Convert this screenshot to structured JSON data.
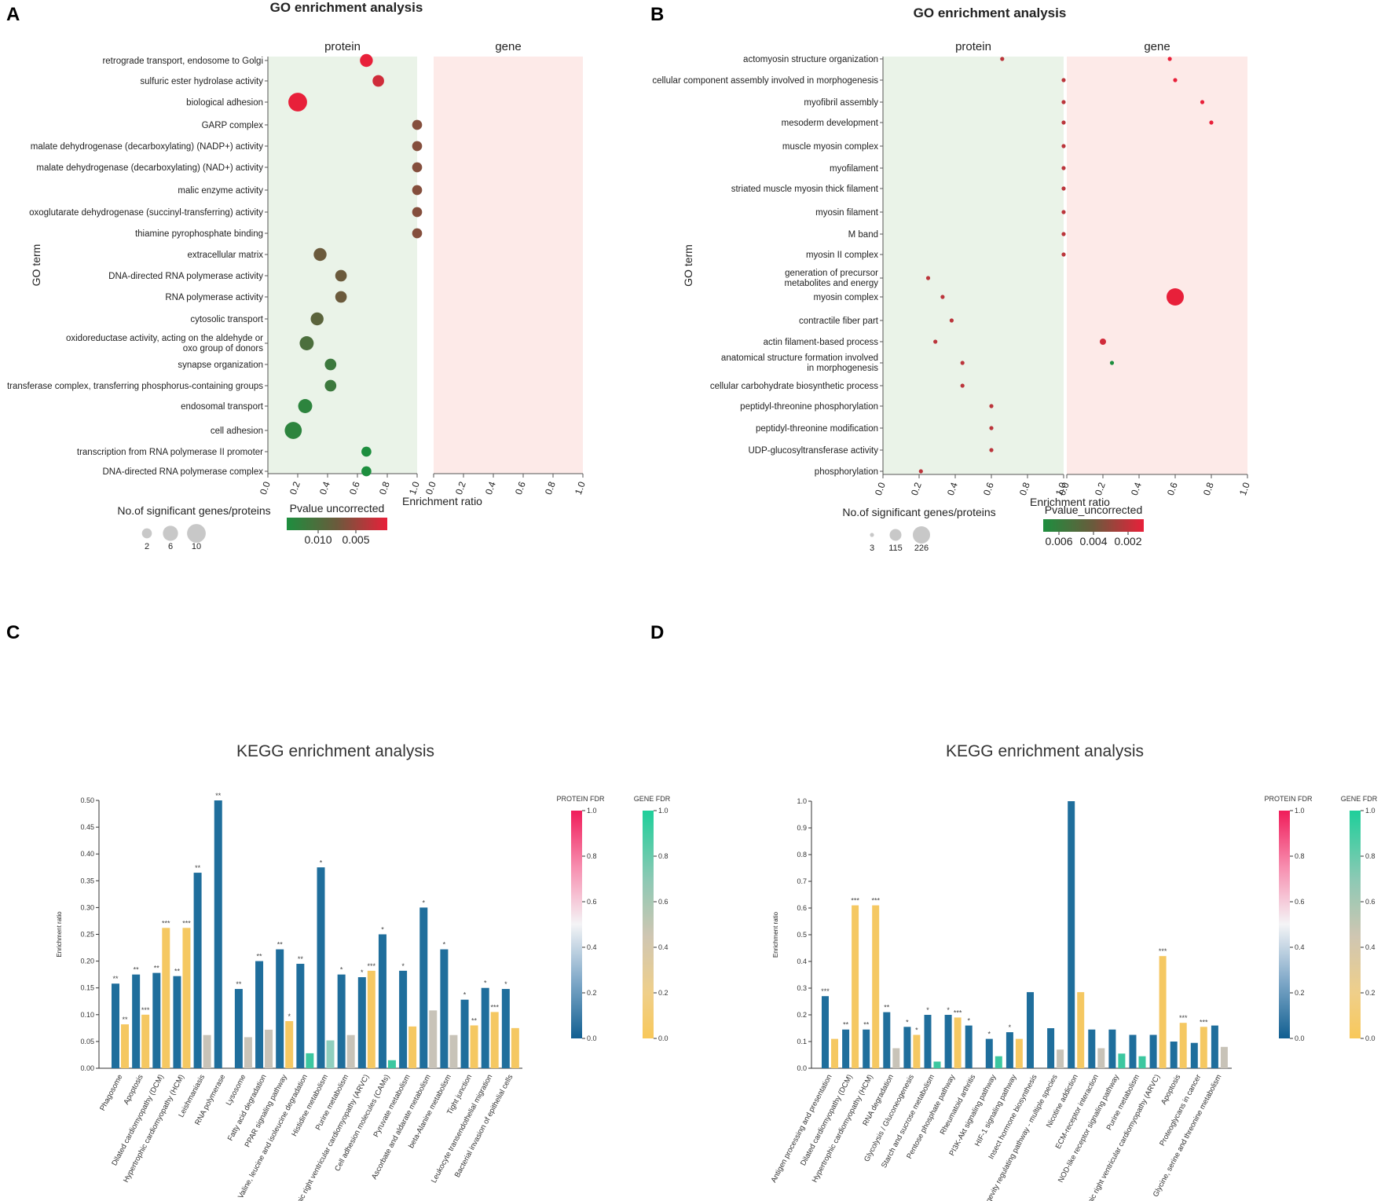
{
  "colors": {
    "protein_bg": "#eaf3e8",
    "gene_bg": "#fdeae8",
    "protein_bar": "#1f6e9c",
    "gene_bar": "#f5c862",
    "gene_bar_teal": "#3cc7a0",
    "gene_bar_gray": "#c8c3b8",
    "pv_high": "#1d8e3e",
    "pv_mid": "#6b5a3c",
    "pv_low": "#e8203a"
  },
  "chart_data": [
    {
      "panel": "A",
      "type": "scatter",
      "title": "GO enrichment analysis",
      "facets": [
        "protein",
        "gene"
      ],
      "ylabel": "GO term",
      "xlabel": "Enrichment ratio",
      "xlim": [
        0,
        1
      ],
      "xticks": [
        "0.0",
        "0.2",
        "0.4",
        "0.6",
        "0.8",
        "1.0"
      ],
      "size_legend": {
        "title": "No.of significant genes/proteins",
        "labels": [
          "2",
          "6",
          "10"
        ],
        "values": [
          2,
          6,
          10
        ]
      },
      "color_legend": {
        "title": "Pvalue uncorrected",
        "labels": [
          "0.010",
          "0.005"
        ]
      },
      "terms": [
        "retrograde transport, endosome to Golgi",
        "sulfuric ester hydrolase activity",
        "biological adhesion",
        "GARP complex",
        "malate dehydrogenase (decarboxylating) (NADP+) activity",
        "malate dehydrogenase (decarboxylating) (NAD+) activity",
        "malic enzyme activity",
        "oxoglutarate dehydrogenase (succinyl-transferring) activity",
        "thiamine pyrophosphate binding",
        "extracellular matrix",
        "DNA-directed RNA polymerase activity",
        "RNA polymerase activity",
        "cytosolic transport",
        "oxidoreductase activity, acting on the aldehyde or\noxo group of donors",
        "synapse organization",
        "transferase complex, transferring phosphorus-containing groups",
        "endosomal transport",
        "cell adhesion",
        "transcription from RNA polymerase II promoter",
        "DNA-directed RNA polymerase complex"
      ],
      "points": [
        {
          "term": 0,
          "facet": "protein",
          "x": 0.66,
          "size": 4,
          "p": 0.001
        },
        {
          "term": 1,
          "facet": "protein",
          "x": 0.74,
          "size": 3,
          "p": 0.002
        },
        {
          "term": 2,
          "facet": "protein",
          "x": 0.2,
          "size": 10,
          "p": 0.001
        },
        {
          "term": 3,
          "facet": "protein",
          "x": 1.0,
          "size": 2,
          "p": 0.005
        },
        {
          "term": 4,
          "facet": "protein",
          "x": 1.0,
          "size": 2,
          "p": 0.005
        },
        {
          "term": 5,
          "facet": "protein",
          "x": 1.0,
          "size": 2,
          "p": 0.005
        },
        {
          "term": 6,
          "facet": "protein",
          "x": 1.0,
          "size": 2,
          "p": 0.005
        },
        {
          "term": 7,
          "facet": "protein",
          "x": 1.0,
          "size": 2,
          "p": 0.005
        },
        {
          "term": 8,
          "facet": "protein",
          "x": 1.0,
          "size": 2,
          "p": 0.005
        },
        {
          "term": 9,
          "facet": "protein",
          "x": 0.35,
          "size": 4,
          "p": 0.006
        },
        {
          "term": 10,
          "facet": "protein",
          "x": 0.49,
          "size": 3,
          "p": 0.006
        },
        {
          "term": 11,
          "facet": "protein",
          "x": 0.49,
          "size": 3,
          "p": 0.006
        },
        {
          "term": 12,
          "facet": "protein",
          "x": 0.33,
          "size": 4,
          "p": 0.007
        },
        {
          "term": 13,
          "facet": "protein",
          "x": 0.26,
          "size": 5,
          "p": 0.008
        },
        {
          "term": 14,
          "facet": "protein",
          "x": 0.42,
          "size": 3,
          "p": 0.009
        },
        {
          "term": 15,
          "facet": "protein",
          "x": 0.42,
          "size": 3,
          "p": 0.009
        },
        {
          "term": 16,
          "facet": "protein",
          "x": 0.25,
          "size": 5,
          "p": 0.01
        },
        {
          "term": 17,
          "facet": "protein",
          "x": 0.17,
          "size": 8,
          "p": 0.01
        },
        {
          "term": 18,
          "facet": "protein",
          "x": 0.66,
          "size": 2,
          "p": 0.011
        },
        {
          "term": 19,
          "facet": "protein",
          "x": 0.66,
          "size": 2,
          "p": 0.011
        }
      ]
    },
    {
      "panel": "B",
      "type": "scatter",
      "title": "GO enrichment analysis",
      "facets": [
        "protein",
        "gene"
      ],
      "ylabel": "GO term",
      "xlabel": "Enrichment ratio",
      "xlim": [
        0,
        1
      ],
      "xticks": [
        "0.0",
        "0.2",
        "0.4",
        "0.6",
        "0.8",
        "1.0"
      ],
      "size_legend": {
        "title": "No.of significant genes/proteins",
        "labels": [
          "3",
          "115",
          "226"
        ],
        "values": [
          3,
          115,
          226
        ]
      },
      "color_legend": {
        "title": "Pvalue_uncorrected",
        "labels": [
          "0.006",
          "0.004",
          "0.002"
        ]
      },
      "terms": [
        "actomyosin structure organization",
        "cellular component assembly involved in morphogenesis",
        "myofibril assembly",
        "mesoderm development",
        "muscle myosin complex",
        "myofilament",
        "striated muscle myosin thick filament",
        "myosin filament",
        "M band",
        "myosin II complex",
        "generation of precursor\nmetabolites and energy",
        "myosin complex",
        "contractile fiber part",
        "actin filament-based process",
        "anatomical structure formation involved\nin morphogenesis",
        "cellular carbohydrate biosynthetic process",
        "peptidyl-threonine phosphorylation",
        "peptidyl-threonine modification",
        "UDP-glucosyltransferase activity",
        "phosphorylation"
      ],
      "points": [
        {
          "term": 0,
          "facet": "protein",
          "x": 0.66,
          "size": 3,
          "p": 0.002
        },
        {
          "term": 1,
          "facet": "protein",
          "x": 1.0,
          "size": 3,
          "p": 0.002
        },
        {
          "term": 2,
          "facet": "protein",
          "x": 1.0,
          "size": 3,
          "p": 0.002
        },
        {
          "term": 3,
          "facet": "protein",
          "x": 1.0,
          "size": 3,
          "p": 0.002
        },
        {
          "term": 4,
          "facet": "protein",
          "x": 1.0,
          "size": 3,
          "p": 0.002
        },
        {
          "term": 5,
          "facet": "protein",
          "x": 1.0,
          "size": 3,
          "p": 0.002
        },
        {
          "term": 6,
          "facet": "protein",
          "x": 1.0,
          "size": 3,
          "p": 0.002
        },
        {
          "term": 7,
          "facet": "protein",
          "x": 1.0,
          "size": 3,
          "p": 0.002
        },
        {
          "term": 8,
          "facet": "protein",
          "x": 1.0,
          "size": 3,
          "p": 0.002
        },
        {
          "term": 9,
          "facet": "protein",
          "x": 1.0,
          "size": 3,
          "p": 0.002
        },
        {
          "term": 10,
          "facet": "protein",
          "x": 0.25,
          "size": 3,
          "p": 0.002
        },
        {
          "term": 11,
          "facet": "protein",
          "x": 0.33,
          "size": 3,
          "p": 0.002
        },
        {
          "term": 12,
          "facet": "protein",
          "x": 0.38,
          "size": 3,
          "p": 0.002
        },
        {
          "term": 13,
          "facet": "protein",
          "x": 0.29,
          "size": 3,
          "p": 0.002
        },
        {
          "term": 14,
          "facet": "protein",
          "x": 0.44,
          "size": 3,
          "p": 0.002
        },
        {
          "term": 15,
          "facet": "protein",
          "x": 0.44,
          "size": 3,
          "p": 0.002
        },
        {
          "term": 16,
          "facet": "protein",
          "x": 0.6,
          "size": 3,
          "p": 0.002
        },
        {
          "term": 17,
          "facet": "protein",
          "x": 0.6,
          "size": 3,
          "p": 0.002
        },
        {
          "term": 18,
          "facet": "protein",
          "x": 0.6,
          "size": 3,
          "p": 0.002
        },
        {
          "term": 19,
          "facet": "protein",
          "x": 0.21,
          "size": 3,
          "p": 0.002
        },
        {
          "term": 0,
          "facet": "gene",
          "x": 0.57,
          "size": 3,
          "p": 0.001
        },
        {
          "term": 1,
          "facet": "gene",
          "x": 0.6,
          "size": 3,
          "p": 0.001
        },
        {
          "term": 2,
          "facet": "gene",
          "x": 0.75,
          "size": 3,
          "p": 0.001
        },
        {
          "term": 3,
          "facet": "gene",
          "x": 0.8,
          "size": 3,
          "p": 0.001
        },
        {
          "term": 11,
          "facet": "gene",
          "x": 0.6,
          "size": 226,
          "p": 0.001
        },
        {
          "term": 13,
          "facet": "gene",
          "x": 0.2,
          "size": 40,
          "p": 0.0015
        },
        {
          "term": 14,
          "facet": "gene",
          "x": 0.25,
          "size": 3,
          "p": 0.0065
        }
      ]
    },
    {
      "panel": "C",
      "type": "bar",
      "title": "KEGG enrichment analysis",
      "ylabel": "Enrichment ratio",
      "ylim": [
        0,
        0.5
      ],
      "yticks": [
        "0.00",
        "0.05",
        "0.10",
        "0.15",
        "0.20",
        "0.25",
        "0.30",
        "0.35",
        "0.40",
        "0.45",
        "0.50"
      ],
      "categories": [
        "Phagosome",
        "Apoptosis",
        "Dilated cardiomyopathy (DCM)",
        "Hypertrophic cardiomyopathy (HCM)",
        "Leishmaniasis",
        "RNA polymerase",
        "Lysosome",
        "Fatty acid degradation",
        "PPAR signaling pathway",
        "Valine, leucine and isoleucine degradation",
        "Histidine metabolism",
        "Purine metabolism",
        "Arrhythmogenic right ventricular cardiomyopathy (ARVC)",
        "Cell adhesion molecules (CAMs)",
        "Pyruvate metabolism",
        "Ascorbate and aldarate metabolism",
        "beta-Alanine metabolism",
        "Tight junction",
        "Leukocyte transendothelial migration",
        "Bacterial invasion of epithelial cells"
      ],
      "series": [
        {
          "name": "protein",
          "values": [
            0.158,
            0.175,
            0.178,
            0.172,
            0.365,
            0.5,
            0.148,
            0.2,
            0.222,
            0.195,
            0.375,
            0.175,
            0.17,
            0.25,
            0.182,
            0.3,
            0.222,
            0.128,
            0.15,
            0.148
          ],
          "stars": [
            "**",
            "**",
            "**",
            "**",
            "**",
            "**",
            "**",
            "**",
            "**",
            "**",
            "*",
            "*",
            "*",
            "*",
            "*",
            "*",
            "*",
            "*",
            "*",
            "*"
          ]
        },
        {
          "name": "gene",
          "values": [
            0.082,
            0.1,
            0.262,
            0.262,
            0.062,
            null,
            0.058,
            0.072,
            0.088,
            0.028,
            0.052,
            0.062,
            0.182,
            0.015,
            0.078,
            0.108,
            0.062,
            0.08,
            0.105,
            0.075
          ],
          "stars": [
            "**",
            "***",
            "***",
            "***",
            "",
            "",
            "",
            "",
            "*",
            "",
            "",
            "",
            "***",
            "",
            "",
            "",
            "",
            "**",
            "***",
            ""
          ],
          "fdr": [
            "lo",
            "lo",
            "lo",
            "lo",
            "mid",
            "",
            "mid",
            "mid",
            "lo",
            "hi",
            "hi2",
            "mid",
            "lo",
            "hi",
            "lo",
            "mid",
            "mid",
            "lo",
            "lo",
            "lo"
          ]
        }
      ],
      "legend": {
        "protein_title": "PROTEIN FDR",
        "gene_title": "GENE FDR",
        "ticks": [
          "1.0",
          "0.8",
          "0.6",
          "0.4",
          "0.2",
          "0.0"
        ]
      }
    },
    {
      "panel": "D",
      "type": "bar",
      "title": "KEGG enrichment analysis",
      "ylabel": "Enrichment ratio",
      "ylim": [
        0,
        1.0
      ],
      "yticks": [
        "0.0",
        "0.1",
        "0.2",
        "0.3",
        "0.4",
        "0.5",
        "0.6",
        "0.7",
        "0.8",
        "0.9",
        "1.0"
      ],
      "categories": [
        "Antigen processing and presentation",
        "Dilated cardiomyopathy (DCM)",
        "Hypertrophic cardiomyopathy (HCM)",
        "RNA degradation",
        "Glycolysis / Gluconeogenesis",
        "Starch and sucrose metabolism",
        "Pentose phosphate pathway",
        "Rheumatoid arthritis",
        "PI3K-Akt signaling pathway",
        "HIF-1 signaling pathway",
        "Insect hormone biosynthesis",
        "Longevity regulating pathway - multiple species",
        "Nicotine addiction",
        "ECM-receptor interaction",
        "NOD-like receptor signaling pathway",
        "Purine metabolism",
        "Arrhythmogenic right ventricular cardiomyopathy (ARVC)",
        "Apoptosis",
        "Proteoglycans in cancer",
        "Glycine, serine and threonine metabolism"
      ],
      "series": [
        {
          "name": "protein",
          "values": [
            0.27,
            0.145,
            0.145,
            0.21,
            0.155,
            0.2,
            0.2,
            0.16,
            0.11,
            0.135,
            0.285,
            0.15,
            1.0,
            0.145,
            0.145,
            0.125,
            0.125,
            0.1,
            0.095,
            0.16
          ],
          "stars": [
            "***",
            "**",
            "**",
            "**",
            "*",
            "*",
            "*",
            "*",
            "*",
            "*",
            "",
            "",
            "",
            "",
            "",
            "",
            "",
            "",
            "",
            ""
          ]
        },
        {
          "name": "gene",
          "values": [
            0.11,
            0.61,
            0.61,
            0.075,
            0.125,
            0.025,
            0.19,
            null,
            0.045,
            0.11,
            null,
            0.07,
            0.285,
            0.075,
            0.055,
            0.045,
            0.42,
            0.17,
            0.155,
            0.08
          ],
          "stars": [
            "",
            "***",
            "***",
            "",
            "*",
            "",
            "***",
            "",
            "",
            "",
            "",
            "",
            "",
            "",
            "",
            "",
            "***",
            "***",
            "***",
            ""
          ],
          "fdr": [
            "lo",
            "lo",
            "lo",
            "mid",
            "lo",
            "hi",
            "lo",
            "",
            "hi",
            "lo",
            "",
            "mid",
            "lo",
            "mid",
            "hi",
            "hi",
            "lo",
            "lo",
            "lo",
            "mid"
          ]
        }
      ],
      "legend": {
        "protein_title": "PROTEIN FDR",
        "gene_title": "GENE FDR",
        "ticks": [
          "1.0",
          "0.8",
          "0.6",
          "0.4",
          "0.2",
          "0.0"
        ]
      }
    }
  ]
}
